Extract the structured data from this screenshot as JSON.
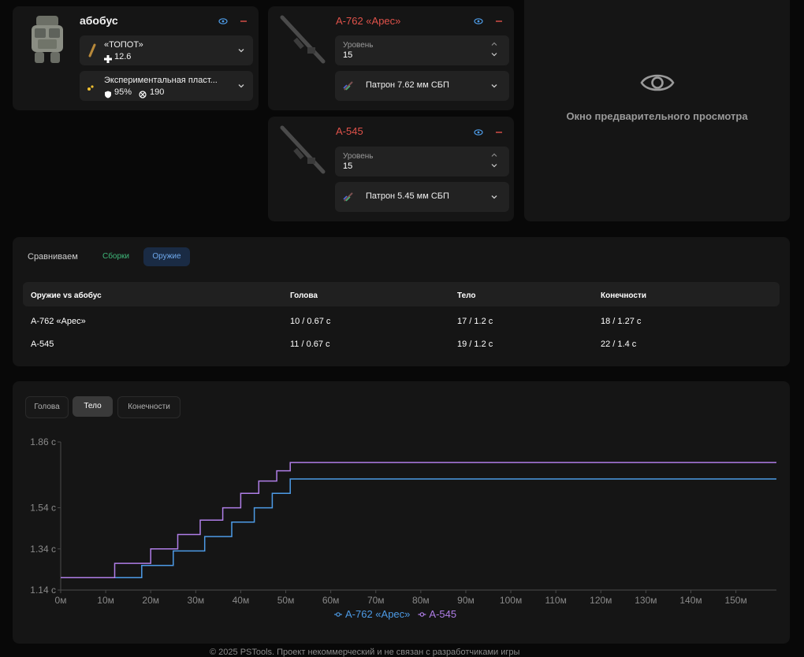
{
  "build": {
    "name": "абобус",
    "helmet": {
      "name": "«ТОПОТ»",
      "stat": "12.6"
    },
    "armor": {
      "name": "Экспериментальная пласт...",
      "percent": "95%",
      "durability": "190"
    }
  },
  "weapons": [
    {
      "name": "А-762 «Арес»",
      "level_label": "Уровень",
      "level": "15",
      "ammo": "Патрон 7.62 мм СБП"
    },
    {
      "name": "А-545",
      "level_label": "Уровень",
      "level": "15",
      "ammo": "Патрон 5.45 мм СБП"
    }
  ],
  "preview": {
    "text": "Окно предварительного просмотра"
  },
  "compare": {
    "label": "Сравниваем",
    "tabs": [
      {
        "label": "Сборки",
        "active": false
      },
      {
        "label": "Оружие",
        "active": true
      }
    ],
    "headers": [
      "Оружие vs абобус",
      "Голова",
      "Тело",
      "Конечности"
    ],
    "rows": [
      [
        "А-762 «Арес»",
        "10 / 0.67 с",
        "17 / 1.2 с",
        "18 / 1.27 с"
      ],
      [
        "А-545",
        "11 / 0.67 с",
        "19 / 1.2 с",
        "22 / 1.4 с"
      ]
    ]
  },
  "chart_tabs": [
    {
      "label": "Голова",
      "active": false
    },
    {
      "label": "Тело",
      "active": true
    },
    {
      "label": "Конечности",
      "active": false
    }
  ],
  "chart_data": {
    "type": "line",
    "xlabel": "",
    "ylabel": "",
    "x_ticks": [
      "0м",
      "10м",
      "20м",
      "30м",
      "40м",
      "50м",
      "60м",
      "70м",
      "80м",
      "90м",
      "100м",
      "110м",
      "120м",
      "130м",
      "140м",
      "150м"
    ],
    "y_ticks": [
      "1.14 с",
      "1.34 с",
      "1.54 с",
      "1.86 с"
    ],
    "y_tick_values": [
      1.14,
      1.34,
      1.54,
      1.86
    ],
    "xlim": [
      0,
      159
    ],
    "ylim": [
      1.14,
      1.86
    ],
    "legend_position": "bottom-center",
    "series": [
      {
        "name": "А-762 «Арес»",
        "color": "#4d9be6",
        "points": [
          [
            0,
            1.2
          ],
          [
            18,
            1.2
          ],
          [
            18,
            1.26
          ],
          [
            25,
            1.26
          ],
          [
            25,
            1.33
          ],
          [
            32,
            1.33
          ],
          [
            32,
            1.4
          ],
          [
            38,
            1.4
          ],
          [
            38,
            1.47
          ],
          [
            43,
            1.47
          ],
          [
            43,
            1.54
          ],
          [
            47,
            1.54
          ],
          [
            47,
            1.61
          ],
          [
            51,
            1.61
          ],
          [
            51,
            1.68
          ],
          [
            159,
            1.68
          ]
        ]
      },
      {
        "name": "А-545",
        "color": "#b07ee8",
        "points": [
          [
            0,
            1.2
          ],
          [
            12,
            1.2
          ],
          [
            12,
            1.27
          ],
          [
            20,
            1.27
          ],
          [
            20,
            1.34
          ],
          [
            26,
            1.34
          ],
          [
            26,
            1.41
          ],
          [
            31,
            1.41
          ],
          [
            31,
            1.48
          ],
          [
            36,
            1.48
          ],
          [
            36,
            1.54
          ],
          [
            40,
            1.54
          ],
          [
            40,
            1.61
          ],
          [
            44,
            1.61
          ],
          [
            44,
            1.67
          ],
          [
            48,
            1.67
          ],
          [
            48,
            1.72
          ],
          [
            51,
            1.72
          ],
          [
            51,
            1.76
          ],
          [
            159,
            1.76
          ]
        ]
      }
    ]
  },
  "footer": {
    "text": "© 2025 PSTools. Проект некоммерческий и не связан с разработчиками игры"
  },
  "colors": {
    "accent_blue": "#4d9be6",
    "accent_purple": "#b07ee8",
    "accent_red": "#e0524a",
    "accent_green": "#3fb87a"
  }
}
